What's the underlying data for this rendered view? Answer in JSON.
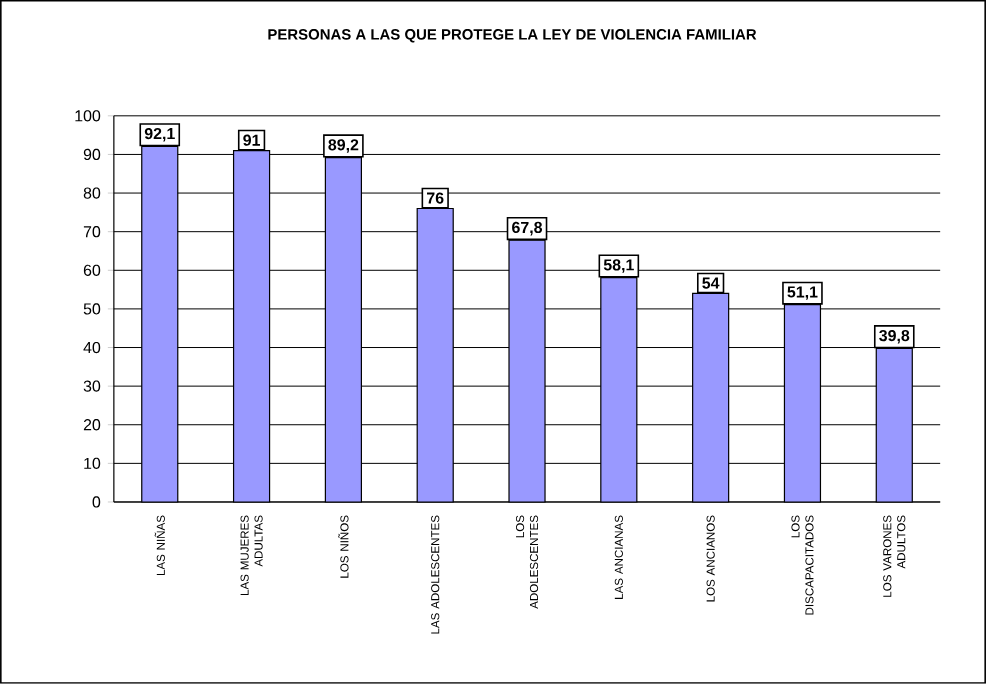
{
  "chart_data": {
    "type": "bar",
    "title": "PERSONAS A LAS QUE PROTEGE LA LEY DE VIOLENCIA FAMILIAR",
    "categories": [
      "LAS NIÑAS",
      "LAS MUJERES ADULTAS",
      "LOS NIÑOS",
      "LAS ADOLESCENTES",
      "LOS ADOLESCENTES",
      "LAS ANCIANAS",
      "LOS ANCIANOS",
      "LOS DISCAPACITADOS",
      "LOS VARONES ADULTOS"
    ],
    "values": [
      92.1,
      91,
      89.2,
      76,
      67.8,
      58.1,
      54,
      51.1,
      39.8
    ],
    "value_labels": [
      "92,1",
      "91",
      "89,2",
      "76",
      "67,8",
      "58,1",
      "54",
      "51,1",
      "39,8"
    ],
    "color": "#9999ff",
    "ylim": [
      0,
      100
    ],
    "yticks": [
      0,
      10,
      20,
      30,
      40,
      50,
      60,
      70,
      80,
      90,
      100
    ],
    "grid": "y"
  }
}
